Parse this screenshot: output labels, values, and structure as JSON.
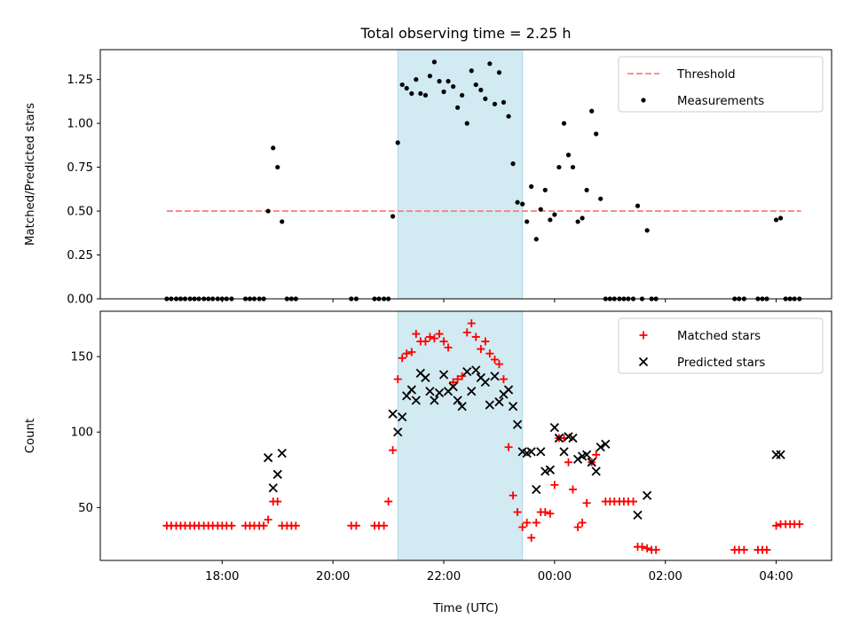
{
  "figure": {
    "title": "Total observing time = 2.25 h",
    "xlabel": "Time (UTC)"
  },
  "colors": {
    "highlight": "#add8e6",
    "threshold": "#ff8080",
    "measurements": "#000000",
    "matched": "#ff0000",
    "predicted": "#000000"
  },
  "chart_data": [
    {
      "type": "scatter",
      "ylabel": "Matched/Predicted stars",
      "x_unit": "hours since 00:00 UTC",
      "xlim": [
        -8.2,
        5.0
      ],
      "ylim": [
        0,
        1.42
      ],
      "xticks": [
        -6,
        -4,
        -2,
        0,
        2,
        4
      ],
      "yticks": [
        0,
        0.25,
        0.5,
        0.75,
        1.0,
        1.25
      ],
      "ytick_labels": [
        "0.00",
        "0.25",
        "0.50",
        "0.75",
        "1.00",
        "1.25"
      ],
      "highlight_span": [
        -2.83,
        -0.58
      ],
      "legend": {
        "position": "upper right",
        "entries": [
          "Threshold",
          "Measurements"
        ]
      },
      "threshold": {
        "name": "Threshold",
        "y": 0.5,
        "x": [
          -7.0,
          4.45
        ]
      },
      "series": [
        {
          "name": "Measurements",
          "points": [
            [
              -7.0,
              0
            ],
            [
              -6.92,
              0
            ],
            [
              -6.83,
              0
            ],
            [
              -6.75,
              0
            ],
            [
              -6.67,
              0
            ],
            [
              -6.58,
              0
            ],
            [
              -6.5,
              0
            ],
            [
              -6.42,
              0
            ],
            [
              -6.33,
              0
            ],
            [
              -6.25,
              0
            ],
            [
              -6.17,
              0
            ],
            [
              -6.08,
              0
            ],
            [
              -6.0,
              0
            ],
            [
              -5.92,
              0
            ],
            [
              -5.83,
              0
            ],
            [
              -5.58,
              0
            ],
            [
              -5.5,
              0
            ],
            [
              -5.42,
              0
            ],
            [
              -5.33,
              0
            ],
            [
              -5.25,
              0
            ],
            [
              -5.17,
              0.5
            ],
            [
              -5.08,
              0.86
            ],
            [
              -5.0,
              0.75
            ],
            [
              -4.92,
              0.44
            ],
            [
              -4.83,
              0
            ],
            [
              -4.75,
              0
            ],
            [
              -4.67,
              0
            ],
            [
              -3.67,
              0
            ],
            [
              -3.58,
              0
            ],
            [
              -3.25,
              0
            ],
            [
              -3.17,
              0
            ],
            [
              -3.08,
              0
            ],
            [
              -3.0,
              0
            ],
            [
              -2.92,
              0.47
            ],
            [
              -2.83,
              0.89
            ],
            [
              -2.75,
              1.22
            ],
            [
              -2.67,
              1.2
            ],
            [
              -2.58,
              1.17
            ],
            [
              -2.5,
              1.25
            ],
            [
              -2.42,
              1.17
            ],
            [
              -2.33,
              1.16
            ],
            [
              -2.25,
              1.27
            ],
            [
              -2.17,
              1.35
            ],
            [
              -2.08,
              1.24
            ],
            [
              -2.0,
              1.18
            ],
            [
              -1.92,
              1.24
            ],
            [
              -1.83,
              1.21
            ],
            [
              -1.75,
              1.09
            ],
            [
              -1.67,
              1.16
            ],
            [
              -1.58,
              1.0
            ],
            [
              -1.5,
              1.3
            ],
            [
              -1.42,
              1.22
            ],
            [
              -1.33,
              1.19
            ],
            [
              -1.25,
              1.14
            ],
            [
              -1.17,
              1.34
            ],
            [
              -1.08,
              1.11
            ],
            [
              -1.0,
              1.29
            ],
            [
              -0.92,
              1.12
            ],
            [
              -0.83,
              1.04
            ],
            [
              -0.75,
              0.77
            ],
            [
              -0.67,
              0.55
            ],
            [
              -0.58,
              0.54
            ],
            [
              -0.5,
              0.44
            ],
            [
              -0.42,
              0.64
            ],
            [
              -0.33,
              0.34
            ],
            [
              -0.25,
              0.51
            ],
            [
              -0.17,
              0.62
            ],
            [
              -0.08,
              0.45
            ],
            [
              0.0,
              0.48
            ],
            [
              0.08,
              0.75
            ],
            [
              0.17,
              1.0
            ],
            [
              0.25,
              0.82
            ],
            [
              0.33,
              0.75
            ],
            [
              0.42,
              0.44
            ],
            [
              0.5,
              0.46
            ],
            [
              0.58,
              0.62
            ],
            [
              0.67,
              1.07
            ],
            [
              0.75,
              0.94
            ],
            [
              0.83,
              0.57
            ],
            [
              0.92,
              0
            ],
            [
              1.0,
              0
            ],
            [
              1.08,
              0
            ],
            [
              1.17,
              0
            ],
            [
              1.25,
              0
            ],
            [
              1.33,
              0
            ],
            [
              1.42,
              0
            ],
            [
              1.5,
              0.53
            ],
            [
              1.58,
              0
            ],
            [
              1.67,
              0.39
            ],
            [
              1.75,
              0
            ],
            [
              1.83,
              0
            ],
            [
              3.25,
              0
            ],
            [
              3.33,
              0
            ],
            [
              3.42,
              0
            ],
            [
              3.67,
              0
            ],
            [
              3.75,
              0
            ],
            [
              3.83,
              0
            ],
            [
              4.0,
              0.45
            ],
            [
              4.08,
              0.46
            ],
            [
              4.17,
              0
            ],
            [
              4.25,
              0
            ],
            [
              4.33,
              0
            ],
            [
              4.42,
              0
            ]
          ]
        }
      ]
    },
    {
      "type": "scatter",
      "ylabel": "Count",
      "xlabel": "Time (UTC)",
      "x_unit": "hours since 00:00 UTC",
      "xlim": [
        -8.2,
        5.0
      ],
      "ylim": [
        15,
        180
      ],
      "xticks": [
        -6,
        -4,
        -2,
        0,
        2,
        4
      ],
      "xtick_labels": [
        "18:00",
        "20:00",
        "22:00",
        "00:00",
        "02:00",
        "04:00"
      ],
      "yticks": [
        50,
        100,
        150
      ],
      "ytick_labels": [
        "50",
        "100",
        "150"
      ],
      "highlight_span": [
        -2.83,
        -0.58
      ],
      "legend": {
        "position": "upper right",
        "entries": [
          "Matched stars",
          "Predicted stars"
        ]
      },
      "series": [
        {
          "name": "Matched stars",
          "marker": "plus",
          "points": [
            [
              -7.0,
              38
            ],
            [
              -6.92,
              38
            ],
            [
              -6.83,
              38
            ],
            [
              -6.75,
              38
            ],
            [
              -6.67,
              38
            ],
            [
              -6.58,
              38
            ],
            [
              -6.5,
              38
            ],
            [
              -6.42,
              38
            ],
            [
              -6.33,
              38
            ],
            [
              -6.25,
              38
            ],
            [
              -6.17,
              38
            ],
            [
              -6.08,
              38
            ],
            [
              -6.0,
              38
            ],
            [
              -5.92,
              38
            ],
            [
              -5.83,
              38
            ],
            [
              -5.58,
              38
            ],
            [
              -5.5,
              38
            ],
            [
              -5.42,
              38
            ],
            [
              -5.33,
              38
            ],
            [
              -5.25,
              38
            ],
            [
              -5.17,
              42
            ],
            [
              -5.08,
              54
            ],
            [
              -5.0,
              54
            ],
            [
              -4.92,
              38
            ],
            [
              -4.83,
              38
            ],
            [
              -4.75,
              38
            ],
            [
              -4.67,
              38
            ],
            [
              -3.67,
              38
            ],
            [
              -3.58,
              38
            ],
            [
              -3.25,
              38
            ],
            [
              -3.17,
              38
            ],
            [
              -3.08,
              38
            ],
            [
              -3.0,
              54
            ],
            [
              -2.92,
              88
            ],
            [
              -2.83,
              135
            ],
            [
              -2.75,
              149
            ],
            [
              -2.67,
              152
            ],
            [
              -2.58,
              153
            ],
            [
              -2.5,
              165
            ],
            [
              -2.42,
              160
            ],
            [
              -2.33,
              160
            ],
            [
              -2.25,
              163
            ],
            [
              -2.17,
              162
            ],
            [
              -2.08,
              165
            ],
            [
              -2.0,
              160
            ],
            [
              -1.92,
              156
            ],
            [
              -1.83,
              133
            ],
            [
              -1.75,
              135
            ],
            [
              -1.67,
              137
            ],
            [
              -1.58,
              166
            ],
            [
              -1.5,
              172
            ],
            [
              -1.42,
              163
            ],
            [
              -1.33,
              155
            ],
            [
              -1.25,
              160
            ],
            [
              -1.17,
              152
            ],
            [
              -1.08,
              148
            ],
            [
              -1.0,
              145
            ],
            [
              -0.92,
              135
            ],
            [
              -0.83,
              90
            ],
            [
              -0.75,
              58
            ],
            [
              -0.67,
              47
            ],
            [
              -0.58,
              37
            ],
            [
              -0.5,
              40
            ],
            [
              -0.42,
              30
            ],
            [
              -0.33,
              40
            ],
            [
              -0.25,
              47
            ],
            [
              -0.17,
              47
            ],
            [
              -0.08,
              46
            ],
            [
              0.0,
              65
            ],
            [
              0.08,
              96
            ],
            [
              0.17,
              96
            ],
            [
              0.25,
              80
            ],
            [
              0.33,
              62
            ],
            [
              0.42,
              37
            ],
            [
              0.5,
              40
            ],
            [
              0.58,
              53
            ],
            [
              0.67,
              80
            ],
            [
              0.75,
              85
            ],
            [
              0.92,
              54
            ],
            [
              1.0,
              54
            ],
            [
              1.08,
              54
            ],
            [
              1.17,
              54
            ],
            [
              1.25,
              54
            ],
            [
              1.33,
              54
            ],
            [
              1.42,
              54
            ],
            [
              1.5,
              24
            ],
            [
              1.58,
              24
            ],
            [
              1.67,
              23
            ],
            [
              1.75,
              22
            ],
            [
              1.83,
              22
            ],
            [
              3.25,
              22
            ],
            [
              3.33,
              22
            ],
            [
              3.42,
              22
            ],
            [
              3.67,
              22
            ],
            [
              3.75,
              22
            ],
            [
              3.83,
              22
            ],
            [
              4.0,
              38
            ],
            [
              4.08,
              39
            ],
            [
              4.17,
              39
            ],
            [
              4.25,
              39
            ],
            [
              4.33,
              39
            ],
            [
              4.42,
              39
            ]
          ]
        },
        {
          "name": "Predicted stars",
          "marker": "x",
          "points": [
            [
              -5.17,
              83
            ],
            [
              -5.08,
              63
            ],
            [
              -5.0,
              72
            ],
            [
              -4.92,
              86
            ],
            [
              -2.92,
              112
            ],
            [
              -2.83,
              100
            ],
            [
              -2.75,
              110
            ],
            [
              -2.67,
              124
            ],
            [
              -2.58,
              128
            ],
            [
              -2.5,
              121
            ],
            [
              -2.42,
              139
            ],
            [
              -2.33,
              136
            ],
            [
              -2.25,
              127
            ],
            [
              -2.17,
              121
            ],
            [
              -2.08,
              126
            ],
            [
              -2.0,
              138
            ],
            [
              -1.92,
              127
            ],
            [
              -1.83,
              130
            ],
            [
              -1.75,
              121
            ],
            [
              -1.67,
              117
            ],
            [
              -1.58,
              140
            ],
            [
              -1.5,
              127
            ],
            [
              -1.42,
              141
            ],
            [
              -1.33,
              136
            ],
            [
              -1.25,
              133
            ],
            [
              -1.17,
              118
            ],
            [
              -1.08,
              137
            ],
            [
              -1.0,
              120
            ],
            [
              -0.92,
              125
            ],
            [
              -0.83,
              128
            ],
            [
              -0.75,
              117
            ],
            [
              -0.67,
              105
            ],
            [
              -0.58,
              87
            ],
            [
              -0.5,
              86
            ],
            [
              -0.42,
              87
            ],
            [
              -0.33,
              62
            ],
            [
              -0.25,
              87
            ],
            [
              -0.17,
              74
            ],
            [
              -0.08,
              75
            ],
            [
              0.0,
              103
            ],
            [
              0.08,
              96
            ],
            [
              0.17,
              87
            ],
            [
              0.25,
              97
            ],
            [
              0.33,
              96
            ],
            [
              0.42,
              82
            ],
            [
              0.5,
              84
            ],
            [
              0.58,
              85
            ],
            [
              0.67,
              80
            ],
            [
              0.75,
              74
            ],
            [
              0.83,
              90
            ],
            [
              0.92,
              92
            ],
            [
              1.5,
              45
            ],
            [
              1.67,
              58
            ],
            [
              4.0,
              85
            ],
            [
              4.08,
              85
            ]
          ]
        }
      ]
    }
  ]
}
